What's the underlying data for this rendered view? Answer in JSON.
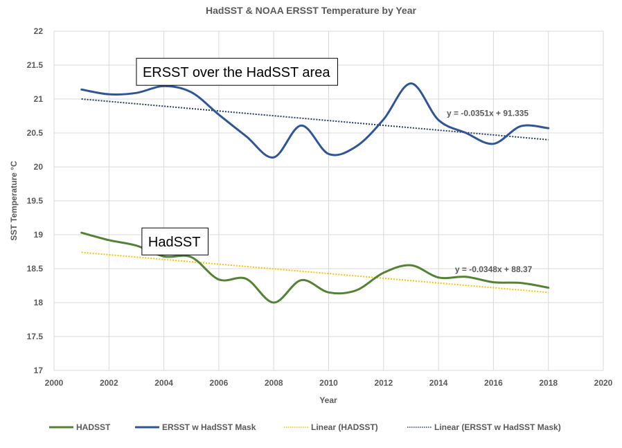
{
  "chart_data": {
    "type": "line",
    "title": "HadSST & NOAA ERSST Temperature by Year",
    "xlabel": "Year",
    "ylabel": "SST Temperature °C",
    "xlim": [
      2000,
      2020
    ],
    "ylim": [
      17,
      22
    ],
    "xticks": [
      2000,
      2002,
      2004,
      2006,
      2008,
      2010,
      2012,
      2014,
      2016,
      2018,
      2020
    ],
    "xtick_labels": [
      "2000",
      "2002",
      "2004",
      "2006",
      "2008",
      "2010",
      "2012",
      "2014",
      "2016",
      "2018",
      "2020"
    ],
    "yticks": [
      17,
      17.5,
      18,
      18.5,
      19,
      19.5,
      20,
      20.5,
      21,
      21.5,
      22
    ],
    "ytick_labels": [
      "17",
      "17.5",
      "18",
      "18.5",
      "19",
      "19.5",
      "20",
      "20.5",
      "21",
      "21.5",
      "22"
    ],
    "grid": true,
    "legend_position": "bottom",
    "x": [
      2001,
      2002,
      2003,
      2004,
      2005,
      2006,
      2007,
      2008,
      2009,
      2010,
      2011,
      2012,
      2013,
      2014,
      2015,
      2016,
      2017,
      2018
    ],
    "series": [
      {
        "name": "HADSST",
        "color": "#548235",
        "style": "smooth-solid",
        "values": [
          19.03,
          18.92,
          18.84,
          18.68,
          18.67,
          18.34,
          18.35,
          18.0,
          18.33,
          18.15,
          18.18,
          18.44,
          18.55,
          18.37,
          18.38,
          18.3,
          18.29,
          18.22
        ]
      },
      {
        "name": "ERSST w HadSST Mask",
        "color": "#2F5597",
        "style": "smooth-solid",
        "values": [
          21.14,
          21.07,
          21.09,
          21.19,
          21.1,
          20.77,
          20.45,
          20.14,
          20.61,
          20.19,
          20.3,
          20.7,
          21.23,
          20.69,
          20.5,
          20.34,
          20.6,
          20.57
        ]
      }
    ],
    "trendlines": [
      {
        "name": "Linear (HADSST)",
        "color": "#FFC000",
        "style": "dotted",
        "x_range": [
          2001,
          2018
        ],
        "y_range": [
          18.74,
          18.15
        ],
        "equation": "y = -0.0348x + 88.37",
        "equation_anchor": [
          2014.6,
          18.45
        ]
      },
      {
        "name": "Linear (ERSST w HadSST Mask)",
        "color": "#203864",
        "style": "dotted",
        "x_range": [
          2001,
          2018
        ],
        "y_range": [
          21.0,
          20.4
        ],
        "equation": "y = -0.0351x + 91.335",
        "equation_anchor": [
          2014.3,
          20.75
        ]
      }
    ],
    "annotations": [
      {
        "text": "ERSST over the HadSST area",
        "anchor": [
          2003.0,
          21.6
        ]
      },
      {
        "text": "HadSST",
        "anchor": [
          2003.2,
          19.1
        ]
      }
    ],
    "legend": [
      {
        "label": "HADSST",
        "color": "#548235",
        "style": "solid"
      },
      {
        "label": "ERSST w HadSST Mask",
        "color": "#2F5597",
        "style": "solid"
      },
      {
        "label": "Linear (HADSST)",
        "color": "#FFC000",
        "style": "dotted"
      },
      {
        "label": "Linear (ERSST w HadSST Mask)",
        "color": "#203864",
        "style": "dotted"
      }
    ]
  }
}
